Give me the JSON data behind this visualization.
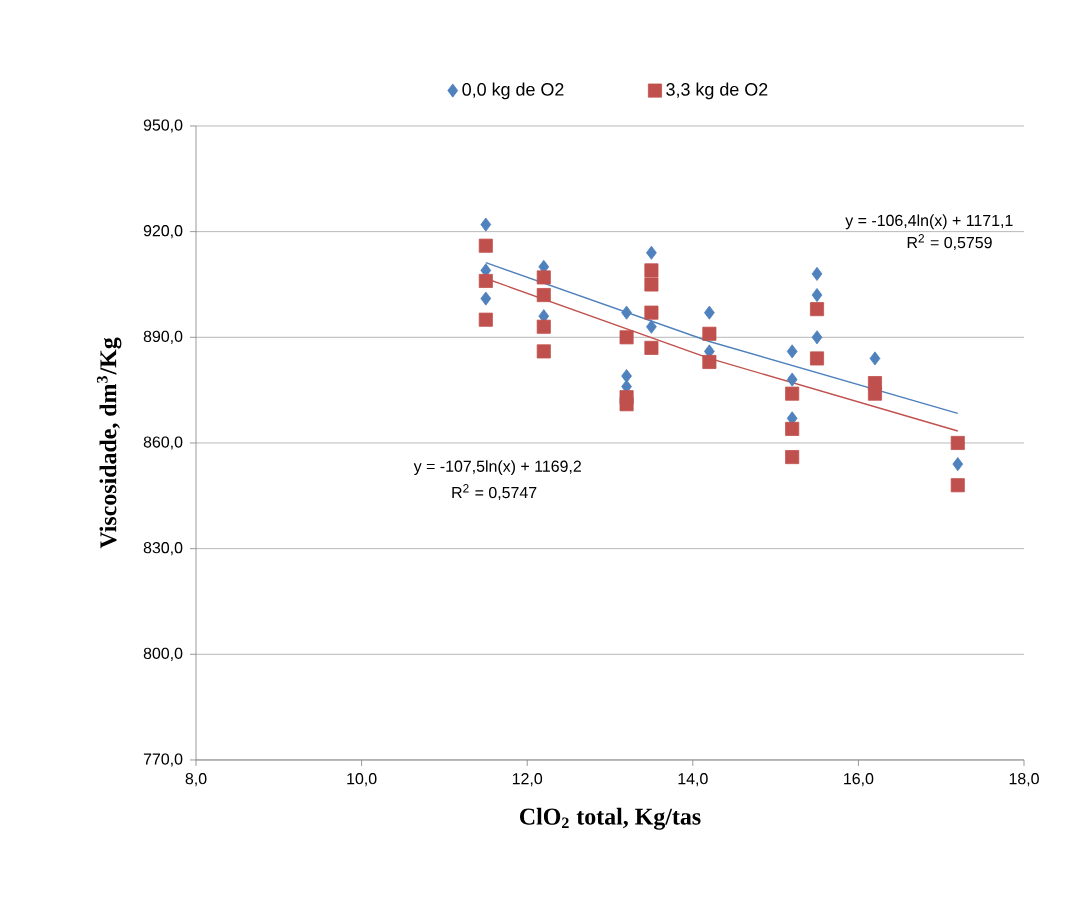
{
  "chart_data": {
    "type": "scatter",
    "xlabel": "ClO$_{2}$ total, Kg/tas",
    "ylabel": "Viscosidade, dm$^{3}$/Kg",
    "xlim": [
      8,
      18
    ],
    "ylim": [
      770,
      950
    ],
    "xticks": [
      {
        "value": 8,
        "label": "8,0"
      },
      {
        "value": 10,
        "label": "10,0"
      },
      {
        "value": 12,
        "label": "12,0"
      },
      {
        "value": 14,
        "label": "14,0"
      },
      {
        "value": 16,
        "label": "16,0"
      },
      {
        "value": 18,
        "label": "18,0"
      }
    ],
    "yticks": [
      {
        "value": 770,
        "label": "770,0"
      },
      {
        "value": 800,
        "label": "800,0"
      },
      {
        "value": 830,
        "label": "830,0"
      },
      {
        "value": 860,
        "label": "860,0"
      },
      {
        "value": 890,
        "label": "890,0"
      },
      {
        "value": 920,
        "label": "920,0"
      },
      {
        "value": 950,
        "label": "950,0"
      }
    ],
    "grid": "y",
    "legend": "top",
    "series": [
      {
        "name": "0,0 kg de O2",
        "color": "#4f81bd",
        "marker": "diamond",
        "x": [
          11.5,
          11.5,
          11.5,
          12.2,
          12.2,
          13.2,
          13.2,
          13.2,
          13.5,
          13.5,
          14.2,
          14.2,
          15.2,
          15.2,
          15.2,
          15.5,
          15.5,
          15.5,
          16.2,
          17.2
        ],
        "values": [
          922,
          909,
          901,
          910,
          896,
          897,
          879,
          876,
          914,
          893,
          897,
          886,
          886,
          878,
          867,
          908,
          902,
          890,
          884,
          854
        ]
      },
      {
        "name": "3,3 kg de O2",
        "color": "#c0504d",
        "marker": "square",
        "x": [
          11.5,
          11.5,
          11.5,
          12.2,
          12.2,
          12.2,
          12.2,
          13.2,
          13.2,
          13.2,
          13.5,
          13.5,
          13.5,
          13.5,
          14.2,
          14.2,
          15.2,
          15.2,
          15.2,
          15.5,
          15.5,
          16.2,
          16.2,
          17.2,
          17.2
        ],
        "values": [
          916,
          906,
          895,
          907,
          902,
          893,
          886,
          890,
          873,
          871,
          909,
          897,
          887,
          905,
          891,
          883,
          874,
          864,
          856,
          898,
          884,
          877,
          874,
          860,
          848
        ]
      },
      {
        "type": "line",
        "color": "#4f81bd",
        "marker": "none",
        "x": [
          11.5,
          14.2,
          17.2
        ],
        "values": [
          911.2,
          888.8,
          868.4
        ]
      },
      {
        "type": "line",
        "color": "#c0504d",
        "marker": "none",
        "x": [
          11.5,
          14.2,
          17.2
        ],
        "values": [
          906.7,
          884.0,
          863.4
        ]
      }
    ],
    "annotations": [
      "y = -106,4ln(x) + 1171,1",
      "R$^{2}$ = 0,5759",
      "y = -107,5ln(x) + 1169,2",
      "R$^{2}$ = 0,5747"
    ]
  }
}
